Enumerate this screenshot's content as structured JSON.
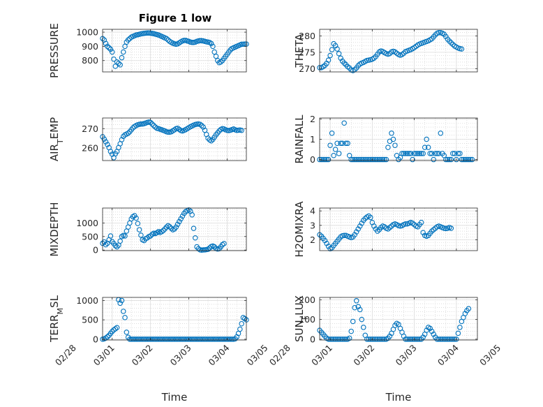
{
  "title": "Figure 1 low",
  "chart_data": [
    {
      "type": "scatter",
      "ylabel": "PRESSURE",
      "yticks": [
        800,
        900,
        1000
      ],
      "ylim": [
        720,
        1020
      ],
      "xlim": [
        "02/28 18:00",
        "03/04 12:00"
      ],
      "x_start": "02/28 12:00",
      "step_hours": 1,
      "values": [
        965,
        968,
        970,
        968,
        966,
        962,
        955,
        945,
        920,
        900,
        890,
        880,
        860,
        810,
        760,
        790,
        780,
        770,
        820,
        860,
        900,
        930,
        945,
        955,
        965,
        970,
        975,
        980,
        982,
        985,
        988,
        990,
        992,
        993,
        994,
        994,
        993,
        991,
        989,
        986,
        983,
        980,
        975,
        970,
        965,
        960,
        955,
        945,
        935,
        928,
        922,
        918,
        915,
        918,
        925,
        932,
        938,
        942,
        942,
        938,
        935,
        930,
        928,
        928,
        930,
        935,
        938,
        940,
        940,
        938,
        935,
        932,
        930,
        927,
        920,
        900,
        860,
        830,
        800,
        785,
        790,
        800,
        815,
        830,
        845,
        860,
        875,
        885,
        890,
        895,
        900,
        905,
        910,
        915,
        915,
        916,
        916,
        917,
        918
      ]
    },
    {
      "type": "scatter",
      "ylabel": "THETA",
      "yticks": [
        270,
        275,
        280
      ],
      "ylim": [
        269,
        282
      ],
      "xlim": [
        "02/28 18:00",
        "03/04 12:00"
      ],
      "x_start": "02/28 12:00",
      "step_hours": 1,
      "values": [
        271.8,
        271.6,
        271.3,
        271,
        270.7,
        270.5,
        270.3,
        270.3,
        270.6,
        271,
        271.6,
        272.6,
        274,
        275.8,
        277.6,
        277,
        276,
        274.6,
        273.2,
        272.3,
        271.7,
        271.2,
        270.6,
        270.2,
        269.6,
        269.4,
        269.7,
        270.2,
        270.9,
        271.4,
        271.7,
        271.9,
        272.2,
        272.5,
        272.6,
        272.7,
        272.9,
        273.2,
        273.7,
        274.4,
        275.1,
        275.4,
        275.2,
        274.9,
        274.6,
        274.4,
        274.6,
        275.1,
        275.3,
        275.1,
        274.7,
        274.3,
        274.1,
        274.3,
        274.7,
        275.2,
        275.4,
        275.6,
        275.8,
        276.1,
        276.4,
        276.8,
        277.2,
        277.5,
        277.7,
        277.9,
        278.1,
        278.3,
        278.5,
        278.8,
        279.1,
        279.7,
        280.3,
        280.8,
        281,
        281,
        280.8,
        280.5,
        279.8,
        279,
        278.4,
        277.9,
        277.4,
        276.9,
        276.6,
        276.3,
        276.1,
        276
      ]
    },
    {
      "type": "scatter",
      "ylabel": "AIR_TEMP",
      "yticks": [
        260,
        270
      ],
      "ylim": [
        253.5,
        275.5
      ],
      "xlim": [
        "02/28 18:00",
        "03/04 12:00"
      ],
      "x_start": "02/28 12:00",
      "step_hours": 1,
      "values": [
        269.2,
        269,
        268.6,
        268.2,
        267.6,
        266.8,
        265.8,
        264.6,
        263.2,
        261.8,
        260.2,
        258.2,
        256.8,
        255,
        257,
        258.2,
        260.2,
        262.2,
        264.3,
        266,
        266.8,
        267.2,
        267.6,
        268.4,
        269.4,
        270.4,
        271.1,
        271.6,
        272,
        272.2,
        272.4,
        272.4,
        272.6,
        272.9,
        273.2,
        273.4,
        273.2,
        272.4,
        271.6,
        270.8,
        270.2,
        270,
        269.7,
        269.4,
        269.1,
        268.8,
        268.4,
        268.2,
        268.2,
        268.4,
        268.9,
        269.4,
        270,
        270.2,
        269.6,
        269,
        268.8,
        269.1,
        269.5,
        270,
        270.5,
        271,
        271.4,
        271.8,
        272.1,
        272.3,
        272.4,
        272.2,
        271.6,
        270.8,
        269.2,
        267,
        265.1,
        264.2,
        263.7,
        264.4,
        265.6,
        266.8,
        267.8,
        268.8,
        269.6,
        270,
        269.8,
        269.4,
        269.1,
        269,
        269.2,
        269.5,
        269.8,
        269.4,
        269.1,
        269.2,
        269.3,
        269.1
      ]
    },
    {
      "type": "scatter",
      "ylabel": "RAINFALL",
      "yticks": [
        0,
        1,
        2
      ],
      "ylim": [
        -0.05,
        2.05
      ],
      "xlim": [
        "02/28 18:00",
        "03/04 12:00"
      ],
      "x_start": "02/28 12:00",
      "step_hours": 1,
      "values": [
        0,
        0,
        0,
        0,
        0,
        0,
        0,
        0,
        0,
        0,
        0,
        0,
        0.7,
        1.3,
        0.2,
        0.5,
        0.8,
        0.3,
        0.8,
        0.8,
        1.8,
        0.8,
        0.8,
        0.2,
        0,
        0,
        0,
        0,
        0,
        0,
        0,
        0,
        0,
        0,
        0,
        0,
        0,
        0,
        0,
        0,
        0,
        0,
        0,
        0,
        0,
        0.6,
        0.9,
        1.3,
        1,
        0.7,
        0.2,
        0,
        0.1,
        0.3,
        0.3,
        0.3,
        0.3,
        0.3,
        0.3,
        0,
        0.3,
        0.3,
        0.3,
        0.3,
        0.3,
        0.3,
        0.6,
        1,
        0.6,
        0.3,
        0.3,
        0,
        0.3,
        0.3,
        0.3,
        1.3,
        0.3,
        0.2,
        0,
        0,
        0,
        0,
        0.3,
        0.3,
        0,
        0.3,
        0.3,
        0,
        0,
        0,
        0,
        0,
        0,
        0
      ]
    },
    {
      "type": "scatter",
      "ylabel": "MIXDEPTH",
      "yticks": [
        0,
        500,
        1000
      ],
      "ylim": [
        -20,
        1550
      ],
      "xlim": [
        "02/28 18:00",
        "03/04 12:00"
      ],
      "x_start": "02/28 12:00",
      "step_hours": 1,
      "values": [
        140,
        150,
        130,
        160,
        190,
        220,
        250,
        300,
        200,
        250,
        380,
        520,
        310,
        240,
        160,
        120,
        180,
        330,
        500,
        540,
        520,
        700,
        850,
        1000,
        1150,
        1230,
        1270,
        1180,
        980,
        750,
        550,
        380,
        350,
        420,
        450,
        500,
        520,
        580,
        620,
        610,
        640,
        680,
        650,
        680,
        720,
        780,
        850,
        900,
        860,
        800,
        750,
        780,
        850,
        950,
        1050,
        1150,
        1250,
        1350,
        1420,
        1450,
        1480,
        1430,
        1300,
        800,
        450,
        120,
        50,
        10,
        0,
        5,
        10,
        20,
        30,
        80,
        130,
        150,
        120,
        60,
        40,
        50,
        120,
        200,
        240
      ]
    },
    {
      "type": "scatter",
      "ylabel": "H2OMIXRA",
      "yticks": [
        2,
        3,
        4
      ],
      "ylim": [
        1.25,
        4.2
      ],
      "xlim": [
        "02/28 18:00",
        "03/04 12:00"
      ],
      "x_start": "02/28 12:00",
      "step_hours": 1,
      "values": [
        2.7,
        2.7,
        2.68,
        2.62,
        2.55,
        2.45,
        2.35,
        2.25,
        2.1,
        1.95,
        1.75,
        1.55,
        1.38,
        1.45,
        1.6,
        1.75,
        1.9,
        2.05,
        2.2,
        2.28,
        2.3,
        2.3,
        2.25,
        2.2,
        2.15,
        2.2,
        2.35,
        2.55,
        2.75,
        2.95,
        3.15,
        3.35,
        3.48,
        3.58,
        3.65,
        3.55,
        3.2,
        2.95,
        2.75,
        2.6,
        2.7,
        2.85,
        2.95,
        2.9,
        2.8,
        2.75,
        2.85,
        2.95,
        3.05,
        3.1,
        3.05,
        2.98,
        2.95,
        2.98,
        3.05,
        3.1,
        3.1,
        3.15,
        3.2,
        3.15,
        3.05,
        2.95,
        2.9,
        3.05,
        3.2,
        2.5,
        2.3,
        2.25,
        2.3,
        2.45,
        2.6,
        2.7,
        2.8,
        2.9,
        2.95,
        2.9,
        2.85,
        2.8,
        2.78,
        2.8,
        2.85,
        2.8
      ]
    },
    {
      "type": "scatter",
      "ylabel": "TERR_MSL",
      "yticks": [
        0,
        500,
        1000
      ],
      "ylim": [
        -20,
        1080
      ],
      "xlim": [
        "02/28 18:00",
        "03/04 12:00"
      ],
      "x_start": "02/28 12:00",
      "step_hours": 1,
      "values": [
        0,
        0,
        0,
        0,
        0,
        0,
        0,
        10,
        30,
        60,
        100,
        150,
        200,
        240,
        270,
        300,
        1020,
        930,
        1000,
        720,
        560,
        180,
        50,
        0,
        0,
        0,
        0,
        0,
        0,
        0,
        0,
        0,
        0,
        0,
        0,
        0,
        0,
        0,
        0,
        0,
        0,
        0,
        0,
        0,
        0,
        0,
        0,
        0,
        0,
        0,
        0,
        0,
        0,
        0,
        0,
        0,
        0,
        0,
        0,
        0,
        0,
        0,
        0,
        0,
        0,
        0,
        0,
        0,
        0,
        0,
        0,
        0,
        0,
        0,
        0,
        0,
        0,
        0,
        0,
        0,
        0,
        0,
        0,
        0,
        0,
        0,
        0,
        0,
        0,
        10,
        60,
        150,
        260,
        400,
        560,
        530,
        500,
        450,
        400,
        350,
        320,
        310,
        300,
        320,
        340,
        310,
        290,
        280,
        290,
        300
      ]
    },
    {
      "type": "scatter",
      "ylabel": "SUN_FLUX",
      "yticks": [
        0,
        100,
        200
      ],
      "ylim": [
        -4,
        212
      ],
      "xlim": [
        "02/28 18:00",
        "03/04 12:00"
      ],
      "x_start": "02/28 12:00",
      "step_hours": 1,
      "values": [
        15,
        25,
        40,
        55,
        60,
        55,
        45,
        35,
        25,
        15,
        5,
        0,
        0,
        0,
        0,
        0,
        0,
        0,
        0,
        0,
        0,
        0,
        0,
        5,
        40,
        90,
        160,
        195,
        165,
        150,
        100,
        60,
        20,
        0,
        0,
        0,
        0,
        0,
        0,
        0,
        0,
        0,
        0,
        0,
        0,
        5,
        15,
        30,
        50,
        70,
        80,
        75,
        55,
        35,
        15,
        0,
        0,
        0,
        0,
        0,
        0,
        0,
        0,
        0,
        0,
        10,
        25,
        45,
        60,
        55,
        40,
        25,
        10,
        0,
        0,
        0,
        0,
        0,
        0,
        0,
        0,
        0,
        0,
        0,
        0,
        30,
        60,
        90,
        110,
        130,
        145,
        155
      ]
    }
  ],
  "xaxis": {
    "ticks": [
      {
        "label": "02/28",
        "t": "02/28 00:00"
      },
      {
        "label": "03/01",
        "t": "03/01 00:00"
      },
      {
        "label": "03/02",
        "t": "03/02 00:00"
      },
      {
        "label": "03/03",
        "t": "03/03 00:00"
      },
      {
        "label": "03/04",
        "t": "03/04 00:00"
      },
      {
        "label": "03/05",
        "t": "03/05 00:00"
      }
    ],
    "xlabel": "Time"
  },
  "marker_color": "#0072BD"
}
